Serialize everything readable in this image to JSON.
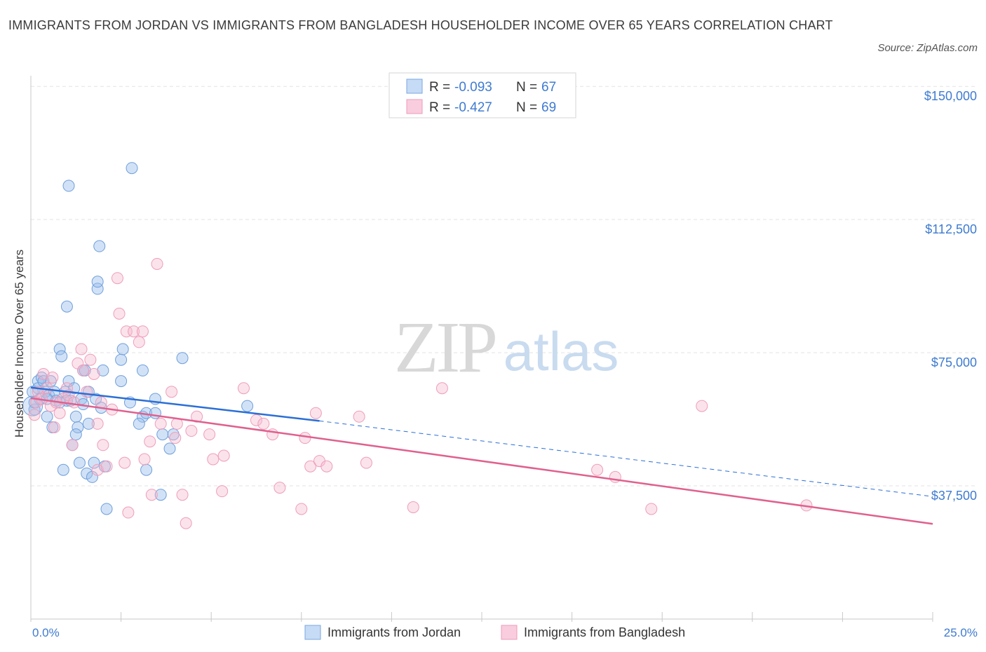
{
  "title": "IMMIGRANTS FROM JORDAN VS IMMIGRANTS FROM BANGLADESH HOUSEHOLDER INCOME OVER 65 YEARS CORRELATION CHART",
  "source": "Source: ZipAtlas.com",
  "watermark": {
    "zip": "ZIP",
    "atlas": "atlas"
  },
  "colors": {
    "jordan": "#5b9bd5",
    "jordan_line": "#2b6fd6",
    "bangladesh": "#f28fb0",
    "bangladesh_line": "#e0608e",
    "axis_label": "#3e7bd1"
  },
  "legend_box": {
    "rows": [
      {
        "r_label": "R =",
        "r_value": "-0.093",
        "n_label": "N =",
        "n_value": "67"
      },
      {
        "r_label": "R =",
        "r_value": "-0.427",
        "n_label": "N =",
        "n_value": "69"
      }
    ]
  },
  "chart_data": {
    "type": "scatter",
    "xlabel": "",
    "ylabel": "Householder Income Over 65 years",
    "xlim": [
      0,
      25
    ],
    "ylim": [
      0,
      153000
    ],
    "x_tick_labels": [
      "0.0%",
      "25.0%"
    ],
    "y_ticks": [
      37500,
      75000,
      112500,
      150000
    ],
    "y_tick_labels": [
      "$37,500",
      "$75,000",
      "$112,500",
      "$150,000"
    ],
    "grid": true,
    "legend_position": "bottom",
    "series": [
      {
        "name": "Immigrants from Jordan",
        "color": "#5b9bd5",
        "points": [
          [
            0.1,
            59000
          ],
          [
            0.1,
            61000
          ],
          [
            0.2,
            67000
          ],
          [
            0.2,
            65000
          ],
          [
            0.25,
            62000
          ],
          [
            0.3,
            68000
          ],
          [
            0.35,
            67000
          ],
          [
            0.4,
            64000
          ],
          [
            0.45,
            57000
          ],
          [
            0.5,
            63000
          ],
          [
            0.55,
            67000
          ],
          [
            0.6,
            54000
          ],
          [
            0.65,
            64000
          ],
          [
            0.7,
            61500
          ],
          [
            0.8,
            61000
          ],
          [
            0.8,
            76000
          ],
          [
            0.85,
            74000
          ],
          [
            0.9,
            42000
          ],
          [
            0.95,
            64000
          ],
          [
            1.0,
            61500
          ],
          [
            1.0,
            88000
          ],
          [
            1.05,
            122000
          ],
          [
            1.05,
            67000
          ],
          [
            1.1,
            61500
          ],
          [
            1.15,
            49000
          ],
          [
            1.2,
            65000
          ],
          [
            1.25,
            57000
          ],
          [
            1.3,
            54000
          ],
          [
            1.35,
            44000
          ],
          [
            1.4,
            62000
          ],
          [
            1.45,
            60500
          ],
          [
            1.45,
            70000
          ],
          [
            1.5,
            70000
          ],
          [
            1.55,
            41000
          ],
          [
            1.6,
            64000
          ],
          [
            1.6,
            55000
          ],
          [
            1.7,
            40000
          ],
          [
            1.75,
            44000
          ],
          [
            1.8,
            62000
          ],
          [
            1.85,
            93000
          ],
          [
            1.85,
            95000
          ],
          [
            1.9,
            105000
          ],
          [
            1.95,
            59500
          ],
          [
            2.0,
            70000
          ],
          [
            2.05,
            43000
          ],
          [
            2.1,
            31000
          ],
          [
            2.5,
            67000
          ],
          [
            2.5,
            73000
          ],
          [
            2.55,
            76000
          ],
          [
            2.75,
            61000
          ],
          [
            2.8,
            127000
          ],
          [
            3.1,
            70000
          ],
          [
            3.1,
            57000
          ],
          [
            3.2,
            58000
          ],
          [
            3.2,
            42000
          ],
          [
            3.45,
            58000
          ],
          [
            3.45,
            62000
          ],
          [
            3.6,
            35000
          ],
          [
            3.65,
            52000
          ],
          [
            3.85,
            48000
          ],
          [
            3.95,
            52000
          ],
          [
            4.2,
            73500
          ],
          [
            6.0,
            60000
          ],
          [
            0.05,
            64000
          ],
          [
            0.45,
            62000
          ],
          [
            1.25,
            52000
          ],
          [
            3.0,
            55000
          ]
        ]
      },
      {
        "name": "Immigrants from Bangladesh",
        "color": "#f28fb0",
        "points": [
          [
            0.1,
            57500
          ],
          [
            0.15,
            61000
          ],
          [
            0.2,
            64000
          ],
          [
            0.3,
            62000
          ],
          [
            0.35,
            69000
          ],
          [
            0.45,
            65000
          ],
          [
            0.55,
            60000
          ],
          [
            0.6,
            68000
          ],
          [
            0.65,
            54000
          ],
          [
            0.7,
            61000
          ],
          [
            0.8,
            58000
          ],
          [
            0.9,
            62000
          ],
          [
            1.0,
            65000
          ],
          [
            1.05,
            63000
          ],
          [
            1.15,
            49000
          ],
          [
            1.2,
            61000
          ],
          [
            1.3,
            72000
          ],
          [
            1.4,
            76000
          ],
          [
            1.45,
            70000
          ],
          [
            1.55,
            64000
          ],
          [
            1.65,
            73000
          ],
          [
            1.75,
            69000
          ],
          [
            1.85,
            42000
          ],
          [
            1.85,
            55000
          ],
          [
            1.95,
            61000
          ],
          [
            2.0,
            49000
          ],
          [
            2.1,
            43000
          ],
          [
            2.25,
            59000
          ],
          [
            2.4,
            96000
          ],
          [
            2.45,
            86000
          ],
          [
            2.6,
            44000
          ],
          [
            2.65,
            81000
          ],
          [
            2.7,
            30000
          ],
          [
            2.85,
            81000
          ],
          [
            3.0,
            78000
          ],
          [
            3.1,
            81000
          ],
          [
            3.15,
            45000
          ],
          [
            3.3,
            50000
          ],
          [
            3.35,
            35000
          ],
          [
            3.5,
            100000
          ],
          [
            3.6,
            55000
          ],
          [
            3.9,
            64000
          ],
          [
            4.0,
            51000
          ],
          [
            4.05,
            55000
          ],
          [
            4.2,
            35000
          ],
          [
            4.3,
            27000
          ],
          [
            4.45,
            53000
          ],
          [
            4.6,
            57000
          ],
          [
            4.95,
            52000
          ],
          [
            5.05,
            45000
          ],
          [
            5.3,
            36000
          ],
          [
            5.35,
            46000
          ],
          [
            5.9,
            65000
          ],
          [
            6.25,
            56000
          ],
          [
            6.45,
            55000
          ],
          [
            6.7,
            52000
          ],
          [
            6.9,
            37000
          ],
          [
            7.5,
            31000
          ],
          [
            7.6,
            51000
          ],
          [
            7.75,
            43000
          ],
          [
            7.9,
            58000
          ],
          [
            8.0,
            44500
          ],
          [
            8.2,
            43000
          ],
          [
            9.1,
            57000
          ],
          [
            9.3,
            44000
          ],
          [
            10.6,
            31500
          ],
          [
            11.4,
            65000
          ],
          [
            15.7,
            42000
          ],
          [
            16.2,
            40000
          ]
        ]
      }
    ],
    "extra_points_bangladesh": [
      [
        17.2,
        31000
      ],
      [
        18.6,
        60000
      ],
      [
        21.5,
        32000
      ]
    ],
    "trend_lines": [
      {
        "series": "Immigrants from Jordan",
        "x": [
          0,
          8
        ],
        "y": [
          65200,
          55800
        ],
        "dashed_extension_to": [
          25,
          34500
        ]
      },
      {
        "series": "Immigrants from Bangladesh",
        "x": [
          0,
          25
        ],
        "y": [
          62200,
          26800
        ]
      }
    ]
  }
}
